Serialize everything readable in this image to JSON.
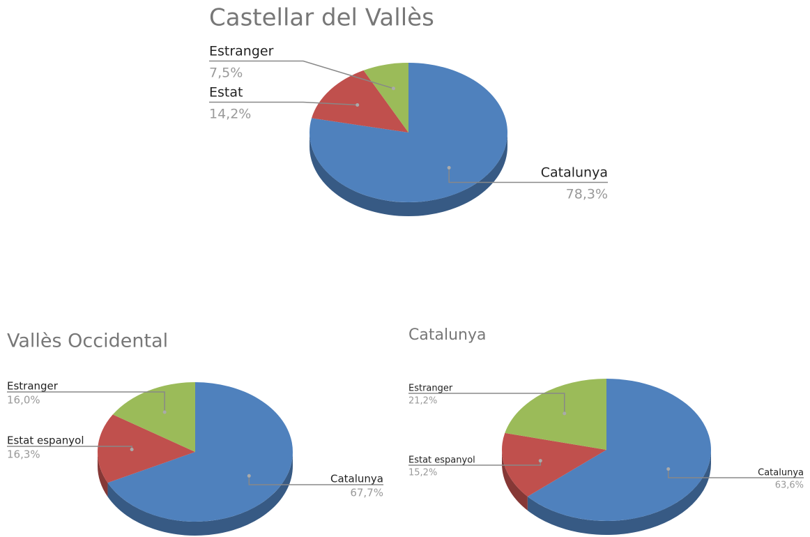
{
  "chart_data": [
    {
      "type": "pie",
      "title": "Castellar del Vallès",
      "categories": [
        "Catalunya",
        "Estat",
        "Estranger"
      ],
      "values": [
        78.3,
        14.2,
        7.5
      ],
      "value_labels": [
        "78,3%",
        "14,2%",
        "7,5%"
      ],
      "colors": [
        "#4f81bd",
        "#c0504d",
        "#9bbb59"
      ]
    },
    {
      "type": "pie",
      "title": "Vallès Occidental",
      "categories": [
        "Catalunya",
        "Estat espanyol",
        "Estranger"
      ],
      "values": [
        67.7,
        16.3,
        16.0
      ],
      "value_labels": [
        "67,7%",
        "16,3%",
        "16,0%"
      ],
      "colors": [
        "#4f81bd",
        "#c0504d",
        "#9bbb59"
      ]
    },
    {
      "type": "pie",
      "title": "Catalunya",
      "categories": [
        "Catalunya",
        "Estat espanyol",
        "Estranger"
      ],
      "values": [
        63.6,
        15.2,
        21.2
      ],
      "value_labels": [
        "63,6%",
        "15,2%",
        "21,2%"
      ],
      "colors": [
        "#4f81bd",
        "#c0504d",
        "#9bbb59"
      ]
    }
  ]
}
